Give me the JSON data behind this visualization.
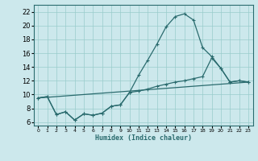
{
  "xlabel": "Humidex (Indice chaleur)",
  "bg_color": "#cce8ec",
  "grid_color": "#99cccc",
  "line_color": "#2a6b6e",
  "xlim": [
    -0.5,
    23.5
  ],
  "ylim": [
    5.5,
    23.0
  ],
  "xticks": [
    0,
    1,
    2,
    3,
    4,
    5,
    6,
    7,
    8,
    9,
    10,
    11,
    12,
    13,
    14,
    15,
    16,
    17,
    18,
    19,
    20,
    21,
    22,
    23
  ],
  "yticks": [
    6,
    8,
    10,
    12,
    14,
    16,
    18,
    20,
    22
  ],
  "curve1_x": [
    0,
    1,
    2,
    3,
    4,
    5,
    6,
    7,
    8,
    9,
    10,
    11,
    12,
    13,
    14,
    15,
    16,
    17,
    18,
    19,
    20,
    21,
    22,
    23
  ],
  "curve1_y": [
    9.5,
    9.7,
    7.1,
    7.5,
    6.3,
    7.2,
    7.0,
    7.3,
    8.3,
    8.5,
    10.3,
    12.8,
    15.0,
    17.3,
    19.8,
    21.3,
    21.7,
    20.8,
    16.8,
    15.5,
    13.8,
    11.8,
    12.0,
    11.8
  ],
  "curve2_x": [
    0,
    1,
    2,
    3,
    4,
    5,
    6,
    7,
    8,
    9,
    10,
    11,
    12,
    13,
    14,
    15,
    16,
    17,
    18,
    19,
    20,
    21,
    22,
    23
  ],
  "curve2_y": [
    9.5,
    9.7,
    7.1,
    7.5,
    6.3,
    7.2,
    7.0,
    7.3,
    8.3,
    8.5,
    10.3,
    10.5,
    10.8,
    11.2,
    11.5,
    11.8,
    12.0,
    12.3,
    12.6,
    15.3,
    13.8,
    11.8,
    12.0,
    11.8
  ],
  "curve3_x": [
    0,
    23
  ],
  "curve3_y": [
    9.5,
    11.8
  ]
}
